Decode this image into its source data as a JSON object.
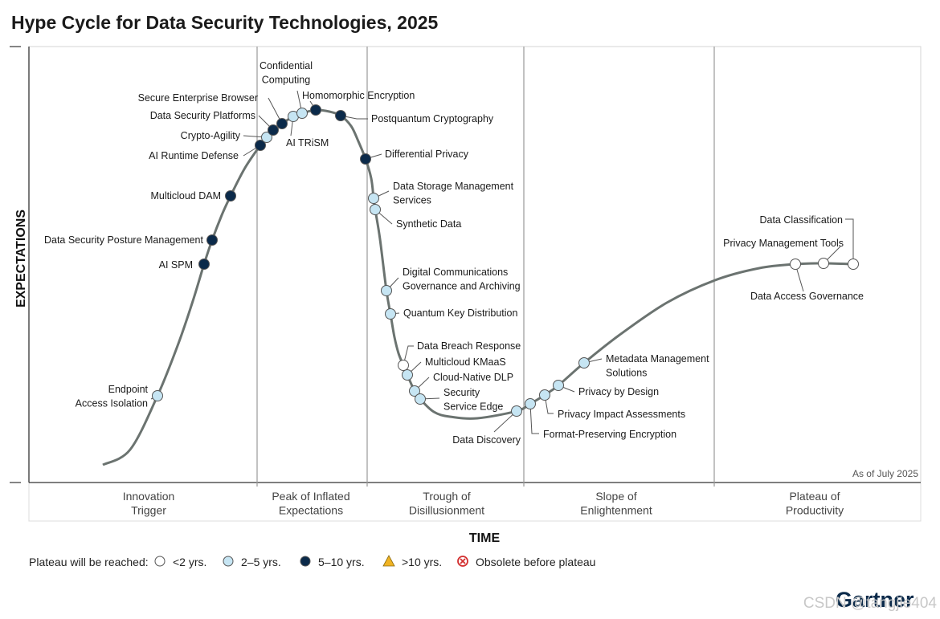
{
  "title": "Hype Cycle for Data Security Technologies, 2025",
  "as_of": "As of July 2025",
  "brand": "Gartner",
  "watermark": "CSDN @tangjie404",
  "colors": {
    "lt2": "#ffffff",
    "y2to5": "#c6e5f3",
    "y5to10": "#0b2a4a",
    "gt10": "#f0b323",
    "obsolete": "#d32f2f",
    "curve": "#6b7370",
    "divider": "#9a9a9a"
  },
  "chart_data": {
    "type": "scatter",
    "title": "Hype Cycle for Data Security Technologies, 2025",
    "xlabel": "TIME",
    "ylabel": "EXPECTATIONS",
    "phases": [
      [
        "Innovation",
        "Trigger"
      ],
      [
        "Peak of Inflated",
        "Expectations"
      ],
      [
        "Trough of",
        "Disillusionment"
      ],
      [
        "Slope of",
        "Enlightenment"
      ],
      [
        "Plateau of",
        "Productivity"
      ]
    ],
    "legend": {
      "prefix": "Plateau will be reached:",
      "items": [
        {
          "key": "lt2",
          "label": "<2 yrs."
        },
        {
          "key": "y2to5",
          "label": "2–5 yrs."
        },
        {
          "key": "y5to10",
          "label": "5–10 yrs."
        },
        {
          "key": "gt10",
          "label": ">10 yrs."
        },
        {
          "key": "obsolete",
          "label": "Obsolete before plateau"
        }
      ]
    },
    "technologies": [
      {
        "name": [
          "Endpoint",
          "Access Isolation"
        ],
        "phase": "Innovation Trigger",
        "plateau": "y2to5"
      },
      {
        "name": [
          "AI SPM"
        ],
        "phase": "Innovation Trigger",
        "plateau": "y5to10"
      },
      {
        "name": [
          "Data Security Posture Management"
        ],
        "phase": "Innovation Trigger",
        "plateau": "y5to10"
      },
      {
        "name": [
          "Multicloud DAM"
        ],
        "phase": "Innovation Trigger",
        "plateau": "y5to10"
      },
      {
        "name": [
          "AI Runtime Defense"
        ],
        "phase": "Innovation Trigger",
        "plateau": "y5to10"
      },
      {
        "name": [
          "Crypto-Agility"
        ],
        "phase": "Peak of Inflated Expectations",
        "plateau": "y2to5"
      },
      {
        "name": [
          "Data Security Platforms"
        ],
        "phase": "Peak of Inflated Expectations",
        "plateau": "y5to10"
      },
      {
        "name": [
          "Secure Enterprise Browser"
        ],
        "phase": "Peak of Inflated Expectations",
        "plateau": "y5to10"
      },
      {
        "name": [
          "AI TRiSM"
        ],
        "phase": "Peak of Inflated Expectations",
        "plateau": "y2to5"
      },
      {
        "name": [
          "Confidential",
          "Computing"
        ],
        "phase": "Peak of Inflated Expectations",
        "plateau": "y2to5"
      },
      {
        "name": [
          "Homomorphic Encryption"
        ],
        "phase": "Peak of Inflated Expectations",
        "plateau": "y5to10"
      },
      {
        "name": [
          "Postquantum Cryptography"
        ],
        "phase": "Peak of Inflated Expectations",
        "plateau": "y5to10"
      },
      {
        "name": [
          "Differential Privacy"
        ],
        "phase": "Trough of Disillusionment",
        "plateau": "y5to10"
      },
      {
        "name": [
          "Data Storage Management",
          "Services"
        ],
        "phase": "Trough of Disillusionment",
        "plateau": "y2to5"
      },
      {
        "name": [
          "Synthetic Data"
        ],
        "phase": "Trough of Disillusionment",
        "plateau": "y2to5"
      },
      {
        "name": [
          "Digital Communications",
          "Governance and Archiving"
        ],
        "phase": "Trough of Disillusionment",
        "plateau": "y2to5"
      },
      {
        "name": [
          "Quantum Key Distribution"
        ],
        "phase": "Trough of Disillusionment",
        "plateau": "y2to5"
      },
      {
        "name": [
          "Data Breach Response"
        ],
        "phase": "Trough of Disillusionment",
        "plateau": "lt2"
      },
      {
        "name": [
          "Multicloud KMaaS"
        ],
        "phase": "Trough of Disillusionment",
        "plateau": "y2to5"
      },
      {
        "name": [
          "Cloud-Native DLP"
        ],
        "phase": "Trough of Disillusionment",
        "plateau": "y2to5"
      },
      {
        "name": [
          "Security",
          "Service Edge"
        ],
        "phase": "Trough of Disillusionment",
        "plateau": "y2to5"
      },
      {
        "name": [
          "Data Discovery"
        ],
        "phase": "Trough of Disillusionment",
        "plateau": "y2to5"
      },
      {
        "name": [
          "Format-Preserving Encryption"
        ],
        "phase": "Slope of Enlightenment",
        "plateau": "y2to5"
      },
      {
        "name": [
          "Privacy Impact Assessments"
        ],
        "phase": "Slope of Enlightenment",
        "plateau": "y2to5"
      },
      {
        "name": [
          "Privacy by Design"
        ],
        "phase": "Slope of Enlightenment",
        "plateau": "y2to5"
      },
      {
        "name": [
          "Metadata Management",
          "Solutions"
        ],
        "phase": "Slope of Enlightenment",
        "plateau": "y2to5"
      },
      {
        "name": [
          "Data Access Governance"
        ],
        "phase": "Plateau of Productivity",
        "plateau": "lt2"
      },
      {
        "name": [
          "Privacy Management Tools"
        ],
        "phase": "Plateau of Productivity",
        "plateau": "lt2"
      },
      {
        "name": [
          "Data Classification"
        ],
        "phase": "Plateau of Productivity",
        "plateau": "lt2"
      }
    ]
  }
}
